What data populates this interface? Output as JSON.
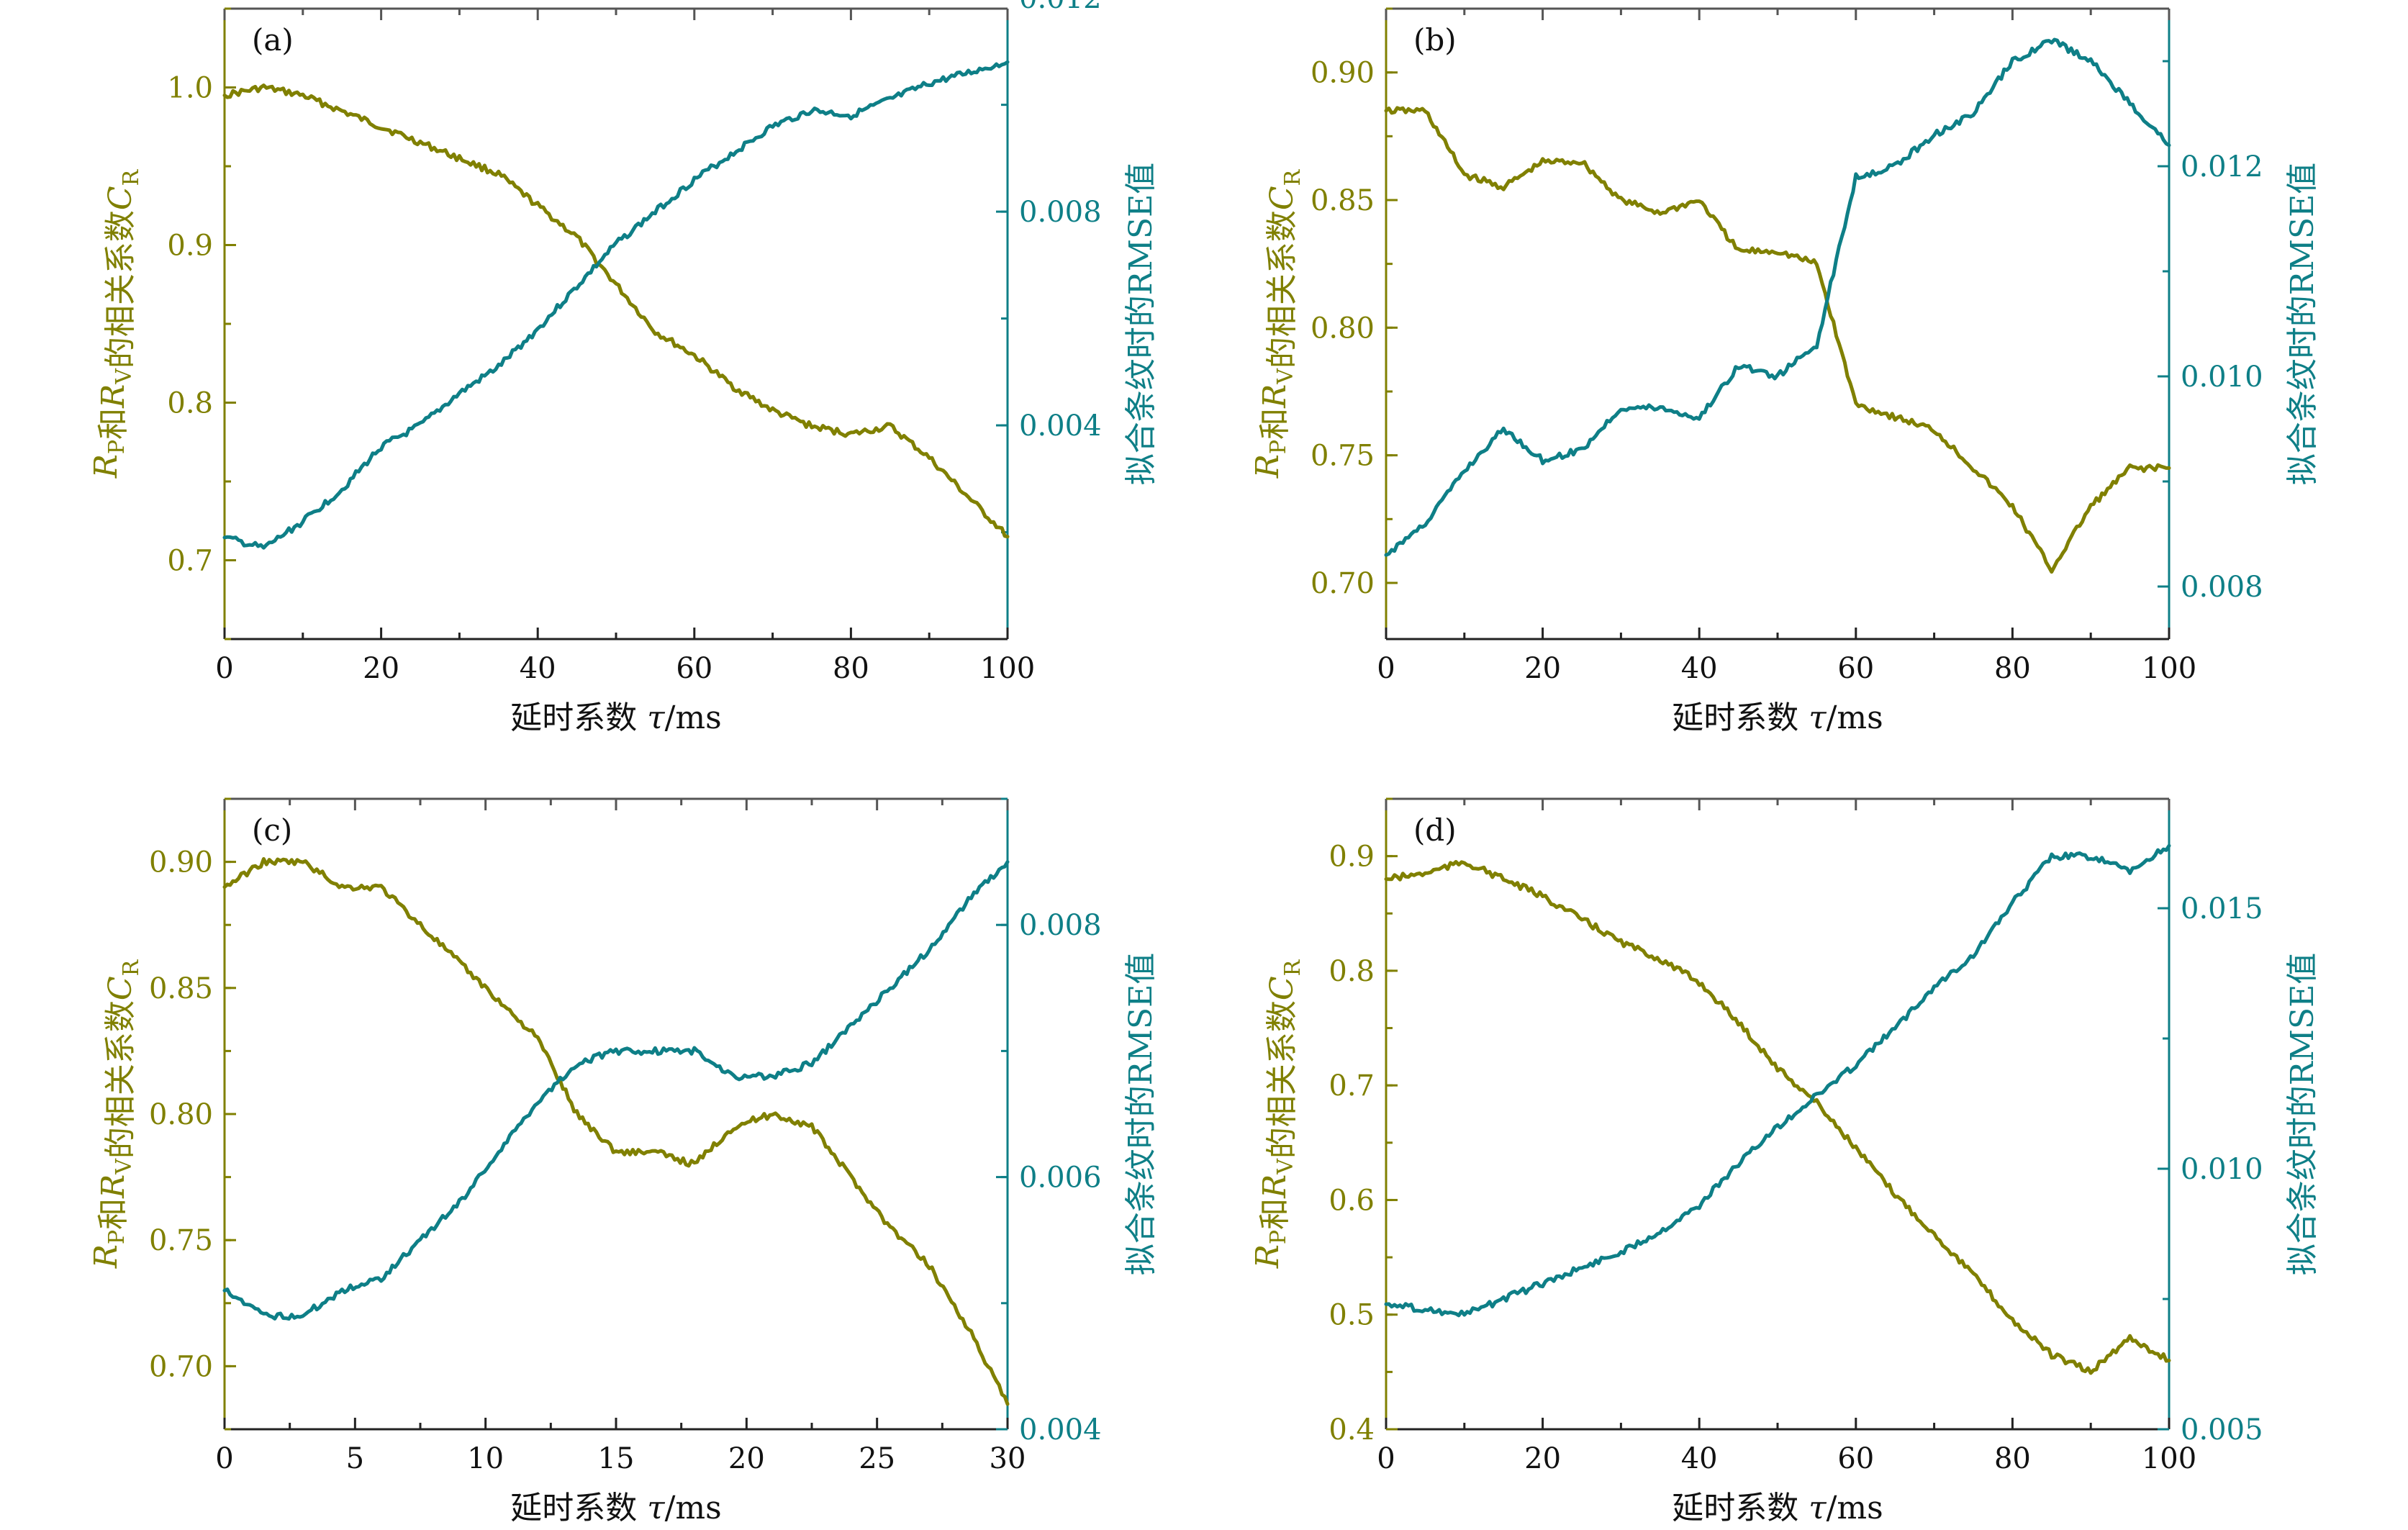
{
  "colors": {
    "left": "#808000",
    "right": "#0e7f87",
    "frame_top": "#555555",
    "x_axis": "#222222"
  },
  "chart_data": [
    {
      "type": "line",
      "panel_label": "(a)",
      "xlabel": "延时系数 τ/ms",
      "ylabel_left": "R_P和R_V的相关系数C_R",
      "ylabel_right": "拟合条纹时的RMSE值",
      "xlim": [
        0,
        100
      ],
      "xticks": [
        0,
        20,
        40,
        60,
        80,
        100
      ],
      "xtick_labels": [
        "0",
        "20",
        "40",
        "60",
        "80",
        "100"
      ],
      "ylim_left": [
        0.65,
        1.05
      ],
      "yticks_left": [
        0.7,
        0.8,
        0.9,
        1.0
      ],
      "ytick_labels_left": [
        "0.7",
        "0.8",
        "0.9",
        "1.0"
      ],
      "ylim_right": [
        0,
        0.0118
      ],
      "yticks_right": [
        0.004,
        0.008,
        0.012
      ],
      "ytick_labels_right": [
        "0.004",
        "0.008",
        "0.012"
      ],
      "series": [
        {
          "name": "相关系数 C_R",
          "axis": "left",
          "x": [
            0,
            5,
            10,
            15,
            20,
            25,
            30,
            35,
            40,
            45,
            50,
            55,
            60,
            65,
            70,
            75,
            80,
            85,
            90,
            95,
            100
          ],
          "y": [
            0.995,
            1.0,
            0.995,
            0.985,
            0.975,
            0.965,
            0.955,
            0.945,
            0.925,
            0.905,
            0.875,
            0.845,
            0.83,
            0.81,
            0.795,
            0.785,
            0.78,
            0.785,
            0.765,
            0.74,
            0.715
          ]
        },
        {
          "name": "RMSE",
          "axis": "right",
          "x": [
            0,
            5,
            10,
            15,
            20,
            25,
            30,
            35,
            40,
            45,
            50,
            55,
            60,
            65,
            70,
            75,
            80,
            85,
            90,
            95,
            100
          ],
          "y": [
            0.0019,
            0.0017,
            0.0022,
            0.0028,
            0.0036,
            0.004,
            0.0046,
            0.0051,
            0.0058,
            0.0066,
            0.0074,
            0.008,
            0.0086,
            0.0091,
            0.0096,
            0.0099,
            0.0098,
            0.0101,
            0.0104,
            0.0106,
            0.0108
          ]
        }
      ]
    },
    {
      "type": "line",
      "panel_label": "(b)",
      "xlabel": "延时系数 τ/ms",
      "ylabel_left": "R_P和R_V的相关系数C_R",
      "ylabel_right": "拟合条纹时的RMSE值",
      "xlim": [
        0,
        100
      ],
      "xticks": [
        0,
        20,
        40,
        60,
        80,
        100
      ],
      "xtick_labels": [
        "0",
        "20",
        "40",
        "60",
        "80",
        "100"
      ],
      "ylim_left": [
        0.678,
        0.925
      ],
      "yticks_left": [
        0.7,
        0.75,
        0.8,
        0.85,
        0.9
      ],
      "ytick_labels_left": [
        "0.70",
        "0.75",
        "0.80",
        "0.85",
        "0.90"
      ],
      "ylim_right": [
        0.0075,
        0.0135
      ],
      "yticks_right": [
        0.008,
        0.01,
        0.012
      ],
      "ytick_labels_right": [
        "0.008",
        "0.010",
        "0.012"
      ],
      "series": [
        {
          "name": "相关系数 C_R",
          "axis": "left",
          "x": [
            0,
            5,
            10,
            15,
            20,
            25,
            30,
            35,
            40,
            45,
            50,
            55,
            60,
            65,
            70,
            75,
            80,
            85,
            90,
            95,
            100
          ],
          "y": [
            0.885,
            0.885,
            0.86,
            0.855,
            0.865,
            0.865,
            0.85,
            0.845,
            0.85,
            0.83,
            0.83,
            0.825,
            0.77,
            0.765,
            0.76,
            0.745,
            0.73,
            0.705,
            0.73,
            0.745,
            0.745
          ]
        },
        {
          "name": "RMSE",
          "axis": "right",
          "x": [
            0,
            5,
            10,
            15,
            20,
            25,
            30,
            35,
            40,
            45,
            50,
            55,
            60,
            65,
            70,
            75,
            80,
            85,
            90,
            95,
            100
          ],
          "y": [
            0.0083,
            0.0086,
            0.0091,
            0.0095,
            0.0092,
            0.0093,
            0.0097,
            0.0097,
            0.0096,
            0.0101,
            0.01,
            0.0103,
            0.0119,
            0.012,
            0.0123,
            0.0125,
            0.013,
            0.0132,
            0.013,
            0.0126,
            0.0122
          ]
        }
      ]
    },
    {
      "type": "line",
      "panel_label": "(c)",
      "xlabel": "延时系数 τ/ms",
      "ylabel_left": "R_P和R_V的相关系数C_R",
      "ylabel_right": "拟合条纹时的RMSE值",
      "xlim": [
        0,
        30
      ],
      "xticks": [
        0,
        5,
        10,
        15,
        20,
        25,
        30
      ],
      "xtick_labels": [
        "0",
        "5",
        "10",
        "15",
        "20",
        "25",
        "30"
      ],
      "ylim_left": [
        0.675,
        0.925
      ],
      "yticks_left": [
        0.7,
        0.75,
        0.8,
        0.85,
        0.9
      ],
      "ytick_labels_left": [
        "0.70",
        "0.75",
        "0.80",
        "0.85",
        "0.90"
      ],
      "ylim_right": [
        0.004,
        0.009
      ],
      "yticks_right": [
        0.004,
        0.006,
        0.008
      ],
      "ytick_labels_right": [
        "0.004",
        "0.006",
        "0.008"
      ],
      "series": [
        {
          "name": "相关系数 C_R",
          "axis": "left",
          "x": [
            0,
            1.5,
            3,
            4.5,
            6,
            7.5,
            9,
            10.5,
            12,
            13.5,
            15,
            16.5,
            18,
            19.5,
            21,
            22.5,
            24,
            25.5,
            27,
            28.5,
            30
          ],
          "y": [
            0.89,
            0.9,
            0.9,
            0.89,
            0.89,
            0.875,
            0.86,
            0.845,
            0.83,
            0.8,
            0.785,
            0.785,
            0.78,
            0.795,
            0.8,
            0.795,
            0.775,
            0.755,
            0.74,
            0.715,
            0.685
          ]
        },
        {
          "name": "RMSE",
          "axis": "right",
          "x": [
            0,
            1.5,
            3,
            4.5,
            6,
            7.5,
            9,
            10.5,
            12,
            13.5,
            15,
            16.5,
            18,
            19.5,
            21,
            22.5,
            24,
            25.5,
            27,
            28.5,
            30
          ],
          "y": [
            0.0051,
            0.0049,
            0.0049,
            0.0051,
            0.0052,
            0.0055,
            0.0058,
            0.0062,
            0.0066,
            0.0069,
            0.007,
            0.007,
            0.007,
            0.0068,
            0.0068,
            0.0069,
            0.0072,
            0.0075,
            0.0078,
            0.0082,
            0.0085
          ]
        }
      ]
    },
    {
      "type": "line",
      "panel_label": "(d)",
      "xlabel": "延时系数 τ/ms",
      "ylabel_left": "R_P和R_V的相关系数C_R",
      "ylabel_right": "拟合条纹时的RMSE值",
      "xlim": [
        0,
        100
      ],
      "xticks": [
        0,
        20,
        40,
        60,
        80,
        100
      ],
      "xtick_labels": [
        "0",
        "20",
        "40",
        "60",
        "80",
        "100"
      ],
      "ylim_left": [
        0.4,
        0.95
      ],
      "yticks_left": [
        0.4,
        0.5,
        0.6,
        0.7,
        0.8,
        0.9
      ],
      "ytick_labels_left": [
        "0.4",
        "0.5",
        "0.6",
        "0.7",
        "0.8",
        "0.9"
      ],
      "ylim_right": [
        0.005,
        0.0171
      ],
      "yticks_right": [
        0.005,
        0.01,
        0.015
      ],
      "ytick_labels_right": [
        "0.005",
        "0.010",
        "0.015"
      ],
      "series": [
        {
          "name": "相关系数 C_R",
          "axis": "left",
          "x": [
            0,
            5,
            10,
            15,
            20,
            25,
            30,
            35,
            40,
            45,
            50,
            55,
            60,
            65,
            70,
            75,
            80,
            85,
            90,
            95,
            100
          ],
          "y": [
            0.88,
            0.885,
            0.895,
            0.88,
            0.865,
            0.845,
            0.825,
            0.81,
            0.79,
            0.755,
            0.715,
            0.685,
            0.645,
            0.605,
            0.57,
            0.535,
            0.495,
            0.465,
            0.45,
            0.48,
            0.46
          ]
        },
        {
          "name": "RMSE",
          "axis": "right",
          "x": [
            0,
            5,
            10,
            15,
            20,
            25,
            30,
            35,
            40,
            45,
            50,
            55,
            60,
            65,
            70,
            75,
            80,
            85,
            90,
            95,
            100
          ],
          "y": [
            0.0074,
            0.0073,
            0.0072,
            0.0075,
            0.0078,
            0.0081,
            0.0084,
            0.0088,
            0.0093,
            0.0101,
            0.0108,
            0.0114,
            0.012,
            0.0127,
            0.0135,
            0.0141,
            0.0151,
            0.016,
            0.016,
            0.0157,
            0.0162
          ]
        }
      ]
    }
  ]
}
